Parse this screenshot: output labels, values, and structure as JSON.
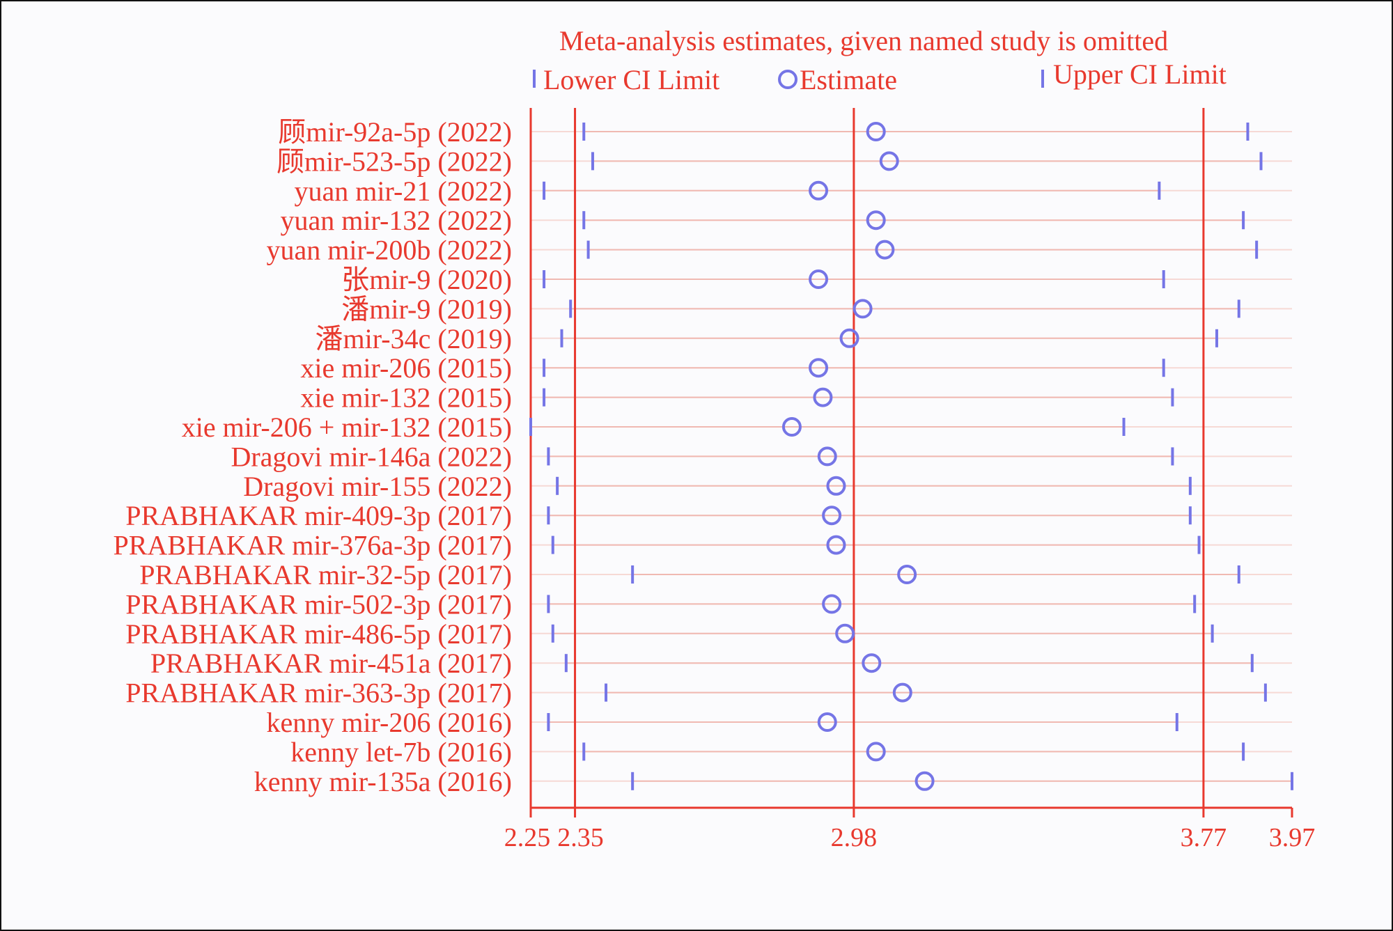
{
  "chart_data": {
    "type": "forest",
    "title": "Meta-analysis estimates, given named study is omitted",
    "legend": {
      "lower": "Lower CI Limit",
      "estimate": "Estimate",
      "upper": "Upper CI Limit"
    },
    "xlim": [
      2.25,
      3.97
    ],
    "xticks": [
      "2.25",
      "2.35",
      "2.98",
      "3.77",
      "3.97"
    ],
    "reference_lines": [
      2.35,
      2.98,
      3.77
    ],
    "studies": [
      {
        "label": "顾mir-92a-5p (2022)",
        "lower": 2.37,
        "estimate": 3.03,
        "upper": 3.87
      },
      {
        "label": "顾mir-523-5p (2022)",
        "lower": 2.39,
        "estimate": 3.06,
        "upper": 3.9
      },
      {
        "label": "yuan mir-21 (2022)",
        "lower": 2.28,
        "estimate": 2.9,
        "upper": 3.67
      },
      {
        "label": "yuan mir-132 (2022)",
        "lower": 2.37,
        "estimate": 3.03,
        "upper": 3.86
      },
      {
        "label": "yuan mir-200b (2022)",
        "lower": 2.38,
        "estimate": 3.05,
        "upper": 3.89
      },
      {
        "label": "张mir-9 (2020)",
        "lower": 2.28,
        "estimate": 2.9,
        "upper": 3.68
      },
      {
        "label": "潘mir-9 (2019)",
        "lower": 2.34,
        "estimate": 3.0,
        "upper": 3.85
      },
      {
        "label": "潘mir-34c (2019)",
        "lower": 2.32,
        "estimate": 2.97,
        "upper": 3.8
      },
      {
        "label": "xie mir-206 (2015)",
        "lower": 2.28,
        "estimate": 2.9,
        "upper": 3.68
      },
      {
        "label": "xie mir-132 (2015)",
        "lower": 2.28,
        "estimate": 2.91,
        "upper": 3.7
      },
      {
        "label": "xie mir-206 + mir-132 (2015)",
        "lower": 2.25,
        "estimate": 2.84,
        "upper": 3.59
      },
      {
        "label": "Dragovi mir-146a (2022)",
        "lower": 2.29,
        "estimate": 2.92,
        "upper": 3.7
      },
      {
        "label": "Dragovi mir-155 (2022)",
        "lower": 2.31,
        "estimate": 2.94,
        "upper": 3.74
      },
      {
        "label": "PRABHAKAR mir-409-3p (2017)",
        "lower": 2.29,
        "estimate": 2.93,
        "upper": 3.74
      },
      {
        "label": "PRABHAKAR mir-376a-3p (2017)",
        "lower": 2.3,
        "estimate": 2.94,
        "upper": 3.76
      },
      {
        "label": "PRABHAKAR mir-32-5p (2017)",
        "lower": 2.48,
        "estimate": 3.1,
        "upper": 3.85
      },
      {
        "label": "PRABHAKAR mir-502-3p (2017)",
        "lower": 2.29,
        "estimate": 2.93,
        "upper": 3.75
      },
      {
        "label": "PRABHAKAR mir-486-5p (2017)",
        "lower": 2.3,
        "estimate": 2.96,
        "upper": 3.79
      },
      {
        "label": "PRABHAKAR mir-451a (2017)",
        "lower": 2.33,
        "estimate": 3.02,
        "upper": 3.88
      },
      {
        "label": "PRABHAKAR mir-363-3p (2017)",
        "lower": 2.42,
        "estimate": 3.09,
        "upper": 3.91
      },
      {
        "label": "kenny mir-206 (2016)",
        "lower": 2.29,
        "estimate": 2.92,
        "upper": 3.71
      },
      {
        "label": "kenny let-7b (2016)",
        "lower": 2.37,
        "estimate": 3.03,
        "upper": 3.86
      },
      {
        "label": "kenny mir-135a (2016)",
        "lower": 2.48,
        "estimate": 3.14,
        "upper": 3.97
      }
    ],
    "grid": false,
    "legend_placement": "top"
  }
}
